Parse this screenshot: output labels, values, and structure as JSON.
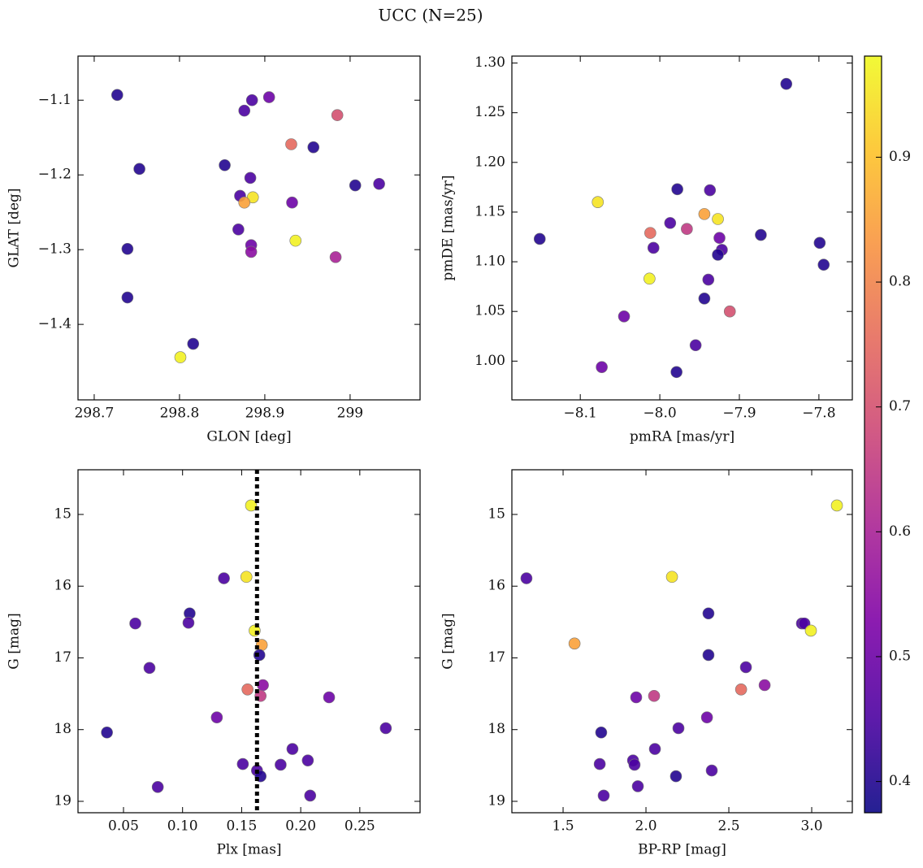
{
  "title": "UCC (N=25)",
  "chart_data": [
    {
      "type": "scatter",
      "xlabel": "GLON [deg]",
      "ylabel": "GLAT [deg]",
      "colormap": "plasma",
      "x": [
        298.727,
        298.876,
        298.885,
        298.905,
        298.985,
        298.931,
        298.957,
        298.753,
        298.853,
        298.883,
        299.006,
        299.034,
        298.871,
        298.886,
        298.876,
        298.932,
        298.869,
        298.884,
        298.884,
        298.936,
        298.983,
        298.739,
        298.739,
        298.816,
        298.801
      ],
      "values": [
        -1.093,
        -1.114,
        -1.1,
        -1.096,
        -1.12,
        -1.159,
        -1.163,
        -1.192,
        -1.187,
        -1.204,
        -1.214,
        -1.212,
        -1.228,
        -1.23,
        -1.237,
        -1.237,
        -1.273,
        -1.294,
        -1.303,
        -1.288,
        -1.31,
        -1.299,
        -1.364,
        -1.426,
        -1.444
      ],
      "c": [
        0.4,
        0.45,
        0.45,
        0.5,
        0.7,
        0.75,
        0.4,
        0.4,
        0.4,
        0.45,
        0.4,
        0.45,
        0.45,
        0.95,
        0.85,
        0.5,
        0.45,
        0.5,
        0.55,
        0.97,
        0.6,
        0.4,
        0.4,
        0.4,
        0.97
      ],
      "xlim": [
        298.681,
        299.082
      ],
      "ylim": [
        -1.501,
        -1.041
      ],
      "xticks": [
        298.7,
        298.8,
        298.9,
        299.0
      ],
      "yticks": [
        {
          "value": -1.4,
          "label": "−1.4"
        },
        {
          "value": -1.3,
          "label": "−1.3"
        },
        {
          "value": -1.2,
          "label": "−1.2"
        },
        {
          "value": -1.1,
          "label": "−1.1"
        }
      ]
    },
    {
      "type": "scatter",
      "xlabel": "pmRA [mas/yr]",
      "ylabel": "pmDE [mas/yr]",
      "colormap": "plasma",
      "x": [
        -7.841,
        -8.078,
        -8.151,
        -7.978,
        -7.937,
        -7.987,
        -7.944,
        -7.927,
        -7.966,
        -8.012,
        -8.008,
        -7.873,
        -7.799,
        -7.794,
        -7.925,
        -7.922,
        -7.927,
        -8.013,
        -7.939,
        -7.944,
        -8.045,
        -7.912,
        -7.955,
        -8.073,
        -7.979
      ],
      "values": [
        1.279,
        1.16,
        1.123,
        1.173,
        1.172,
        1.139,
        1.148,
        1.143,
        1.133,
        1.129,
        1.114,
        1.127,
        1.119,
        1.097,
        1.124,
        1.112,
        1.107,
        1.083,
        1.082,
        1.063,
        1.045,
        1.05,
        1.016,
        0.994,
        0.989
      ],
      "c": [
        0.4,
        0.95,
        0.4,
        0.4,
        0.45,
        0.45,
        0.85,
        0.95,
        0.65,
        0.75,
        0.45,
        0.4,
        0.4,
        0.4,
        0.5,
        0.45,
        0.4,
        0.97,
        0.45,
        0.4,
        0.5,
        0.7,
        0.45,
        0.5,
        0.4
      ],
      "xlim": [
        -8.186,
        -7.758
      ],
      "ylim": [
        0.961,
        1.307
      ],
      "xticks": [
        {
          "value": -8.1,
          "label": "−8.1"
        },
        {
          "value": -8.0,
          "label": "−8.0"
        },
        {
          "value": -7.9,
          "label": "−7.9"
        },
        {
          "value": -7.8,
          "label": "−7.8"
        }
      ],
      "yticks": [
        {
          "value": 1.0,
          "label": "1.00"
        },
        1.05,
        {
          "value": 1.1,
          "label": "1.10"
        },
        1.15,
        {
          "value": 1.2,
          "label": "1.20"
        },
        1.25,
        {
          "value": 1.3,
          "label": "1.30"
        }
      ]
    },
    {
      "type": "scatter",
      "xlabel": "Plx [mas]",
      "ylabel": "G [mag]",
      "colormap": "plasma",
      "vline": 0.163,
      "x": [
        0.158,
        0.154,
        0.135,
        0.106,
        0.06,
        0.105,
        0.161,
        0.167,
        0.165,
        0.072,
        0.168,
        0.155,
        0.166,
        0.224,
        0.129,
        0.036,
        0.272,
        0.193,
        0.206,
        0.151,
        0.183,
        0.163,
        0.166,
        0.079,
        0.208
      ],
      "values": [
        14.875,
        15.87,
        15.89,
        16.38,
        16.52,
        16.51,
        16.62,
        16.82,
        16.96,
        17.14,
        17.38,
        17.44,
        17.53,
        17.55,
        17.83,
        18.04,
        17.98,
        18.27,
        18.43,
        18.48,
        18.49,
        18.57,
        18.65,
        18.8,
        18.92
      ],
      "c": [
        0.97,
        0.95,
        0.45,
        0.4,
        0.45,
        0.45,
        0.97,
        0.85,
        0.4,
        0.45,
        0.55,
        0.75,
        0.65,
        0.5,
        0.5,
        0.4,
        0.45,
        0.45,
        0.45,
        0.45,
        0.45,
        0.45,
        0.4,
        0.45,
        0.45
      ],
      "xlim": [
        0.0115,
        0.301
      ],
      "ylim": [
        19.159,
        14.377
      ],
      "xticks": [
        0.05,
        {
          "value": 0.1,
          "label": "0.10"
        },
        0.15,
        {
          "value": 0.2,
          "label": "0.20"
        },
        0.25
      ],
      "yticks": [
        15,
        16,
        17,
        18,
        19
      ]
    },
    {
      "type": "scatter",
      "xlabel": "BP-RP [mag]",
      "ylabel": "G [mag]",
      "colormap": "plasma",
      "x": [
        3.152,
        1.279,
        2.157,
        2.377,
        2.941,
        2.956,
        2.995,
        1.569,
        2.377,
        2.603,
        2.716,
        2.574,
        2.049,
        1.941,
        2.368,
        1.73,
        2.196,
        2.054,
        1.922,
        1.721,
        1.931,
        2.397,
        2.181,
        1.951,
        1.745
      ],
      "values": [
        14.875,
        15.89,
        15.87,
        16.38,
        16.52,
        16.52,
        16.62,
        16.8,
        16.96,
        17.13,
        17.38,
        17.44,
        17.53,
        17.55,
        17.83,
        18.04,
        17.98,
        18.27,
        18.43,
        18.48,
        18.49,
        18.57,
        18.65,
        18.79,
        18.92
      ],
      "c": [
        0.97,
        0.45,
        0.95,
        0.4,
        0.45,
        0.45,
        0.97,
        0.85,
        0.4,
        0.45,
        0.55,
        0.75,
        0.65,
        0.5,
        0.5,
        0.4,
        0.45,
        0.45,
        0.45,
        0.45,
        0.45,
        0.45,
        0.4,
        0.45,
        0.45
      ],
      "xlim": [
        1.191,
        3.245
      ],
      "ylim": [
        19.159,
        14.377
      ],
      "xticks": [
        1.5,
        {
          "value": 2.0,
          "label": "2.0"
        },
        2.5,
        {
          "value": 3.0,
          "label": "3.0"
        }
      ],
      "yticks": [
        15,
        16,
        17,
        18,
        19
      ]
    },
    {
      "type": "colorbar",
      "colormap": "plasma",
      "clim": [
        0.375,
        0.981
      ],
      "ticks": [
        0.4,
        0.5,
        0.6,
        0.7,
        0.8,
        0.9
      ]
    }
  ]
}
